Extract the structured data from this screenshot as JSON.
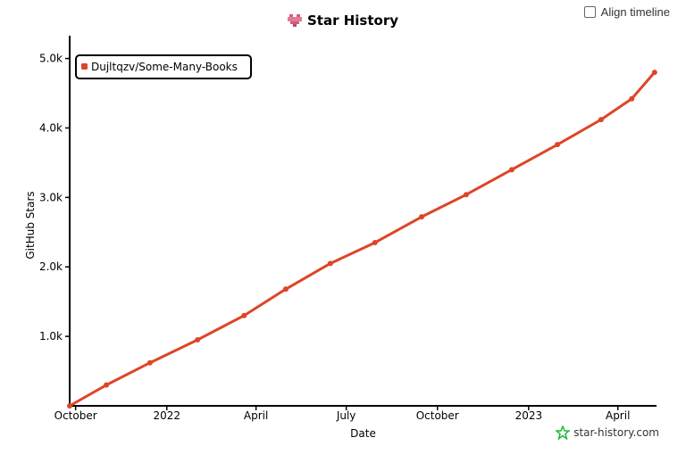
{
  "title": "Star History",
  "align_timeline_label": "Align timeline",
  "watermark": "star-history.com",
  "colors": {
    "series": "#dd4528",
    "axis": "#000000",
    "watermark_icon": "#22b83a",
    "logo": "#d45a7c"
  },
  "icons": {
    "logo": "star-history-logo-icon",
    "watermark": "star-outline-icon",
    "checkbox": "checkbox-icon"
  },
  "chart_data": {
    "type": "line",
    "title": "Star History",
    "xlabel": "Date",
    "ylabel": "GitHub Stars",
    "x_ticks": [
      "October",
      "2022",
      "April",
      "July",
      "October",
      "2023",
      "April"
    ],
    "y_ticks": [
      "1.0k",
      "2.0k",
      "3.0k",
      "4.0k",
      "5.0k"
    ],
    "ylim": [
      0,
      5200
    ],
    "xlim": [
      "2021-09-25",
      "2023-05-10"
    ],
    "legend": "top-left",
    "series": [
      {
        "name": "Dujltqzv/Some-Many-Books",
        "x": [
          "2021-09-25",
          "2021-11-01",
          "2021-12-15",
          "2022-02-01",
          "2022-03-20",
          "2022-05-01",
          "2022-06-15",
          "2022-07-30",
          "2022-09-15",
          "2022-10-30",
          "2022-12-15",
          "2023-01-30",
          "2023-03-15",
          "2023-04-15",
          "2023-05-08"
        ],
        "values": [
          0,
          300,
          620,
          950,
          1300,
          1680,
          2050,
          2350,
          2720,
          3040,
          3400,
          3760,
          4120,
          4420,
          4800
        ]
      }
    ]
  }
}
